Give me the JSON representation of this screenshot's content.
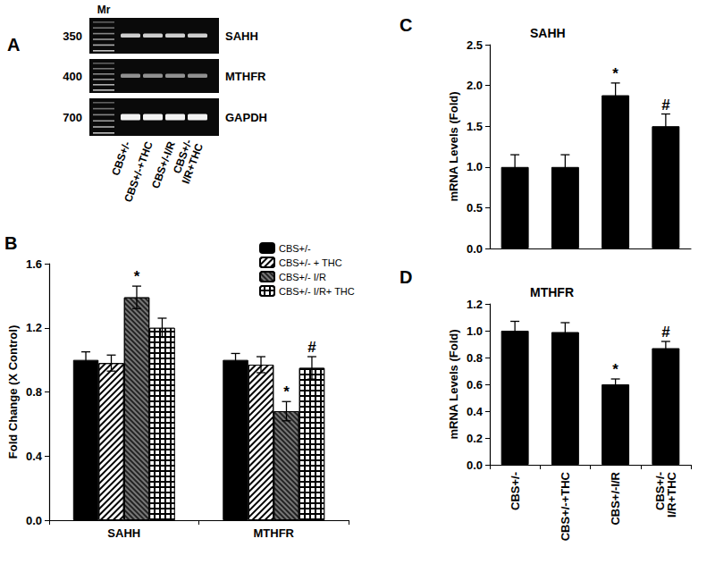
{
  "panel_labels": [
    "A",
    "B",
    "C",
    "D"
  ],
  "gel": {
    "marker_label": "Mr",
    "sizes": [
      350,
      400,
      700
    ],
    "genes": [
      "SAHH",
      "MTHFR",
      "GAPDH"
    ],
    "lanes": [
      "CBS+/-",
      "CBS+/-+THC",
      "CBS+/-I/R",
      "CBS+/-\nI/R+THC"
    ]
  },
  "chart_data": [
    {
      "type": "bar",
      "y_label": "Fold Change (X Control)",
      "categories": [
        "SAHH",
        "MTHFR"
      ],
      "series": [
        {
          "name": "CBS+/-",
          "color": "#000000",
          "values": [
            1.0,
            1.0
          ],
          "errors": [
            0.05,
            0.04
          ],
          "annotations": [
            null,
            null
          ]
        },
        {
          "name": "CBS+/- + THC",
          "color": "#ffffff",
          "values": [
            0.98,
            0.97
          ],
          "errors": [
            0.05,
            0.05
          ],
          "annotations": [
            null,
            null
          ]
        },
        {
          "name": "CBS+/- I/R",
          "color": "#777777",
          "values": [
            1.39,
            0.68
          ],
          "errors": [
            0.07,
            0.06
          ],
          "annotations": [
            "*",
            "*"
          ]
        },
        {
          "name": "CBS+/- I/R+ THC",
          "color": "#000000",
          "values": [
            1.2,
            0.95
          ],
          "errors": [
            0.06,
            0.07
          ],
          "annotations": [
            null,
            "#"
          ]
        }
      ],
      "ylim": [
        0,
        1.6
      ],
      "yticks": [
        {
          "value": 0,
          "label": "0.0"
        },
        0.4,
        0.8,
        1.2,
        1.6
      ],
      "grid": false,
      "legend": "top-right"
    },
    {
      "type": "bar",
      "title": "SAHH",
      "y_label": "mRNA Levels (Fold)",
      "categories": [
        null,
        null,
        null,
        null
      ],
      "series": [
        {
          "color": "#000000",
          "values": [
            1.0,
            1.0,
            1.88,
            1.5
          ],
          "errors": [
            0.15,
            0.15,
            0.15,
            0.15
          ],
          "annotations": [
            null,
            null,
            "*",
            "#"
          ]
        }
      ],
      "ylim": [
        0,
        2.5
      ],
      "yticks": [
        {
          "value": 0,
          "label": "0.0"
        },
        0.5,
        {
          "value": 1,
          "label": "1.0"
        },
        1.5,
        {
          "value": 2,
          "label": "2.0"
        },
        2.5
      ],
      "grid": false,
      "tick_labels": "y"
    },
    {
      "type": "bar",
      "title": "MTHFR",
      "y_label": "mRNA Levels (Fold)",
      "categories": [
        "CBS+/-",
        "CBS+/-+THC",
        "CBS+/-I/R",
        "CBS+/-\nI/R+THC"
      ],
      "series": [
        {
          "color": "#000000",
          "values": [
            1.0,
            0.99,
            0.6,
            0.87
          ],
          "errors": [
            0.07,
            0.07,
            0.04,
            0.05
          ],
          "annotations": [
            null,
            null,
            "*",
            "#"
          ]
        }
      ],
      "ylim": [
        0,
        1.2
      ],
      "yticks": [
        {
          "value": 0,
          "label": "0.0"
        },
        0.2,
        0.4,
        0.6,
        0.8,
        {
          "value": 1,
          "label": "1.0"
        },
        1.2
      ],
      "grid": false
    }
  ]
}
